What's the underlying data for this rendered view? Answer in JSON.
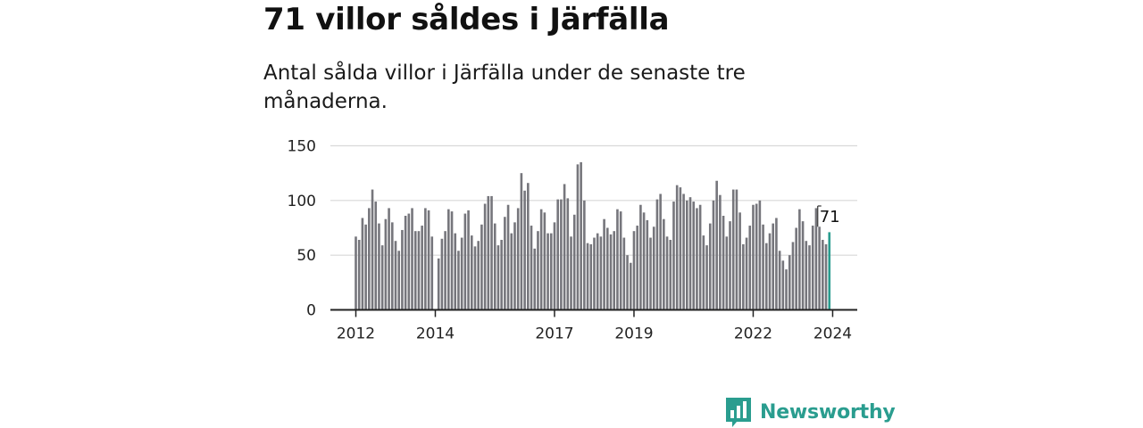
{
  "title": "71 villor såldes i Järfälla",
  "subtitle": "Antal sålda villor i Järfälla under de senaste tre månaderna.",
  "logo": {
    "text": "Newsworthy",
    "color": "#2a9d8f",
    "icon": "bar-chart-icon"
  },
  "colors": {
    "bar": "#76767c",
    "highlight": "#2a9d8f",
    "grid": "#d9d9d9",
    "axis": "#222222"
  },
  "chart_data": {
    "type": "bar",
    "title": "",
    "xlabel": "",
    "ylabel": "",
    "ylim": [
      0,
      150
    ],
    "grid": true,
    "y_ticks": [
      0,
      50,
      100,
      150
    ],
    "x_start": "2012-01",
    "x_ticks": [
      {
        "value": "2012-01",
        "label": "2012"
      },
      {
        "value": "2014-01",
        "label": "2014"
      },
      {
        "value": "2017-01",
        "label": "2017"
      },
      {
        "value": "2019-01",
        "label": "2019"
      },
      {
        "value": "2022-01",
        "label": "2022"
      },
      {
        "value": "2024-01",
        "label": "2024"
      }
    ],
    "series": [
      {
        "values": [
          67,
          64,
          84,
          78,
          93,
          110,
          99,
          79,
          59,
          83,
          93,
          80,
          63,
          54,
          73,
          86,
          88,
          93,
          72,
          72,
          77,
          93,
          91,
          67,
          null,
          47,
          65,
          72,
          92,
          90,
          70,
          54,
          66,
          88,
          91,
          68,
          58,
          63,
          78,
          97,
          104,
          104,
          79,
          59,
          64,
          85,
          96,
          70,
          80,
          93,
          125,
          109,
          116,
          77,
          56,
          72,
          92,
          89,
          70,
          70,
          80,
          101,
          101,
          115,
          102,
          67,
          87,
          133,
          135,
          100,
          61,
          60,
          66,
          70,
          67,
          83,
          75,
          69,
          72,
          92,
          90,
          66,
          50,
          43,
          72,
          77,
          96,
          89,
          82,
          66,
          76,
          101,
          106,
          83,
          67,
          64,
          99,
          114,
          112,
          106,
          100,
          103,
          99,
          93,
          96,
          68,
          59,
          79,
          100,
          118,
          105,
          86,
          67,
          81,
          110,
          110,
          89,
          60,
          66,
          77,
          96,
          97,
          100,
          78,
          61,
          70,
          79,
          84,
          54,
          45,
          37,
          50,
          62,
          75,
          92,
          81,
          63,
          59,
          77,
          93,
          76,
          64,
          60,
          71
        ]
      }
    ],
    "highlight": {
      "label": "71",
      "value": 71
    }
  }
}
